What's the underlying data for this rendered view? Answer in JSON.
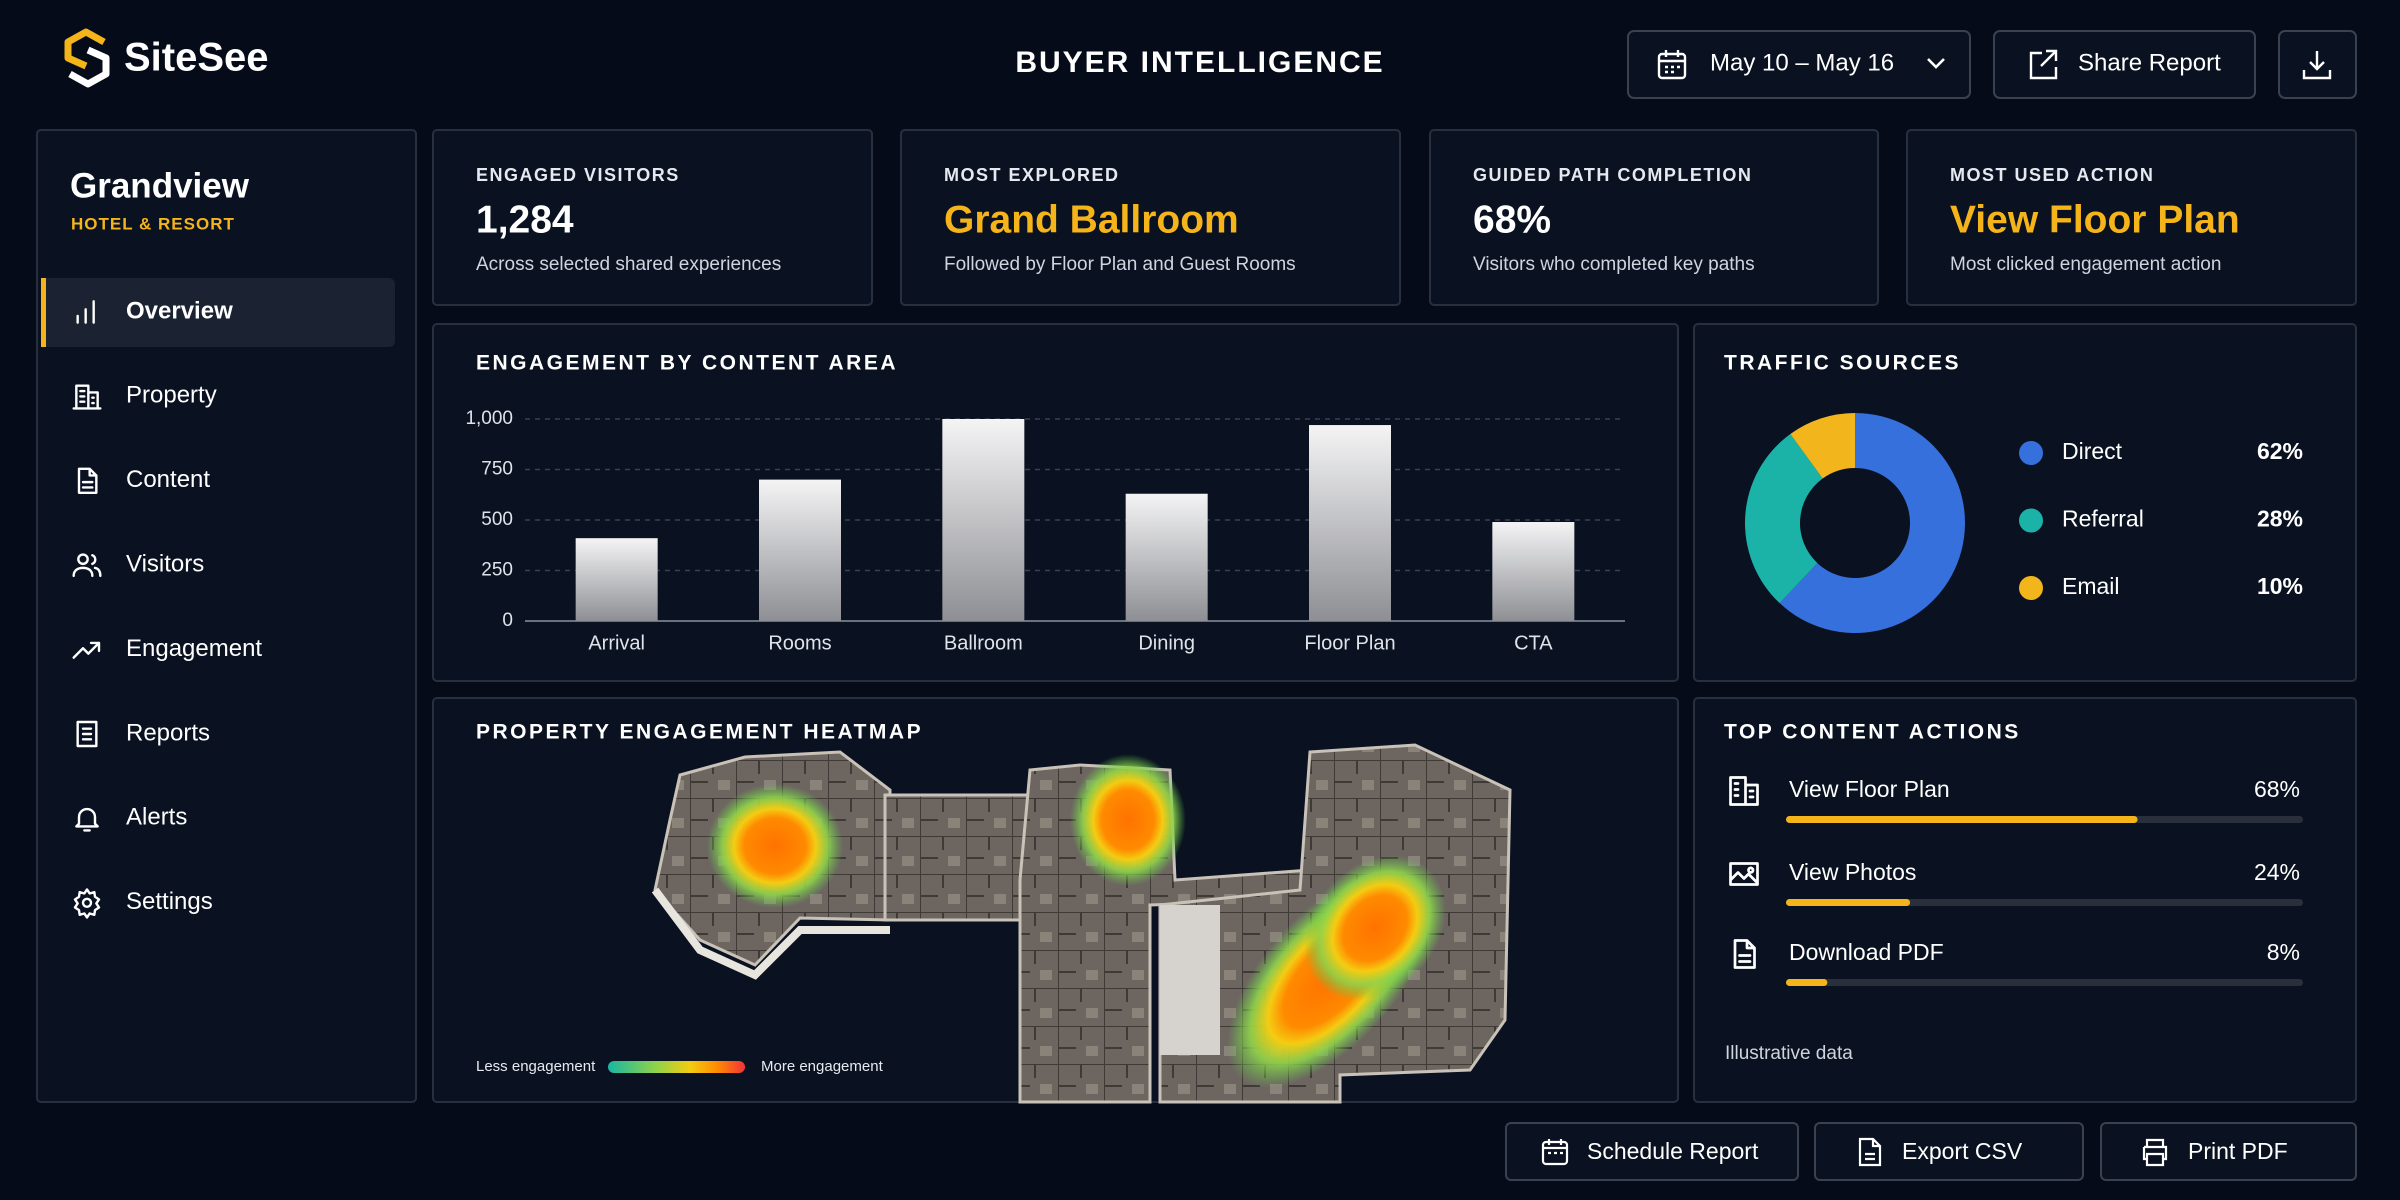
{
  "header": {
    "logo": "SiteSee",
    "title": "BUYER INTELLIGENCE",
    "date_range": "May 10 – May 16",
    "share": "Share Report"
  },
  "sidebar": {
    "property": "Grandview",
    "subtitle": "HOTEL & RESORT",
    "nav": [
      "Overview",
      "Property",
      "Content",
      "Visitors",
      "Engagement",
      "Reports",
      "Alerts",
      "Settings"
    ],
    "active": 0
  },
  "kpis": [
    {
      "label": "ENGAGED VISITORS",
      "value": "1,284",
      "note": "Across selected shared experiences",
      "color": "#ffffff"
    },
    {
      "label": "MOST EXPLORED",
      "value": "Grand Ballroom",
      "note": "Followed by Floor Plan and Guest Rooms",
      "color": "#f5b419"
    },
    {
      "label": "GUIDED PATH COMPLETION",
      "value": "68%",
      "note": "Visitors who completed key paths",
      "color": "#ffffff"
    },
    {
      "label": "MOST USED ACTION",
      "value": "View Floor Plan",
      "note": "Most clicked engagement action",
      "color": "#f5b419"
    }
  ],
  "chart_data": [
    {
      "type": "bar",
      "title": "ENGAGEMENT BY CONTENT AREA",
      "categories": [
        "Arrival",
        "Rooms",
        "Ballroom",
        "Dining",
        "Floor Plan",
        "CTA"
      ],
      "values": [
        410,
        700,
        1000,
        630,
        970,
        490
      ],
      "color": "#e6e6e8",
      "ylim": [
        0,
        1000
      ],
      "yticks": [
        0,
        250,
        500,
        750,
        {
          "value": 1000,
          "label": "1,000"
        }
      ],
      "grid": true
    },
    {
      "type": "pie",
      "title": "TRAFFIC SOURCES",
      "categories": [
        "Direct",
        "Referral",
        "Email"
      ],
      "values": [
        62,
        28,
        10
      ],
      "value_labels": [
        "62%",
        "28%",
        "10%"
      ],
      "colors": [
        "#3670dc",
        "#1bb3a8",
        "#f2b51c"
      ]
    }
  ],
  "heatmap": {
    "title": "PROPERTY ENGAGEMENT HEATMAP",
    "legend_low": "Less engagement",
    "legend_high": "More engagement"
  },
  "top_actions": {
    "title": "TOP CONTENT ACTIONS",
    "xlim": [
      0,
      100
    ],
    "items": [
      {
        "label": "View Floor Plan",
        "value": 68,
        "value_label": "68%"
      },
      {
        "label": "View Photos",
        "value": 24,
        "value_label": "24%"
      },
      {
        "label": "Download PDF",
        "value": 8,
        "value_label": "8%"
      }
    ],
    "note": "Illustrative data"
  },
  "footer": {
    "buttons": [
      "Schedule Report",
      "Export CSV",
      "Print PDF"
    ]
  }
}
